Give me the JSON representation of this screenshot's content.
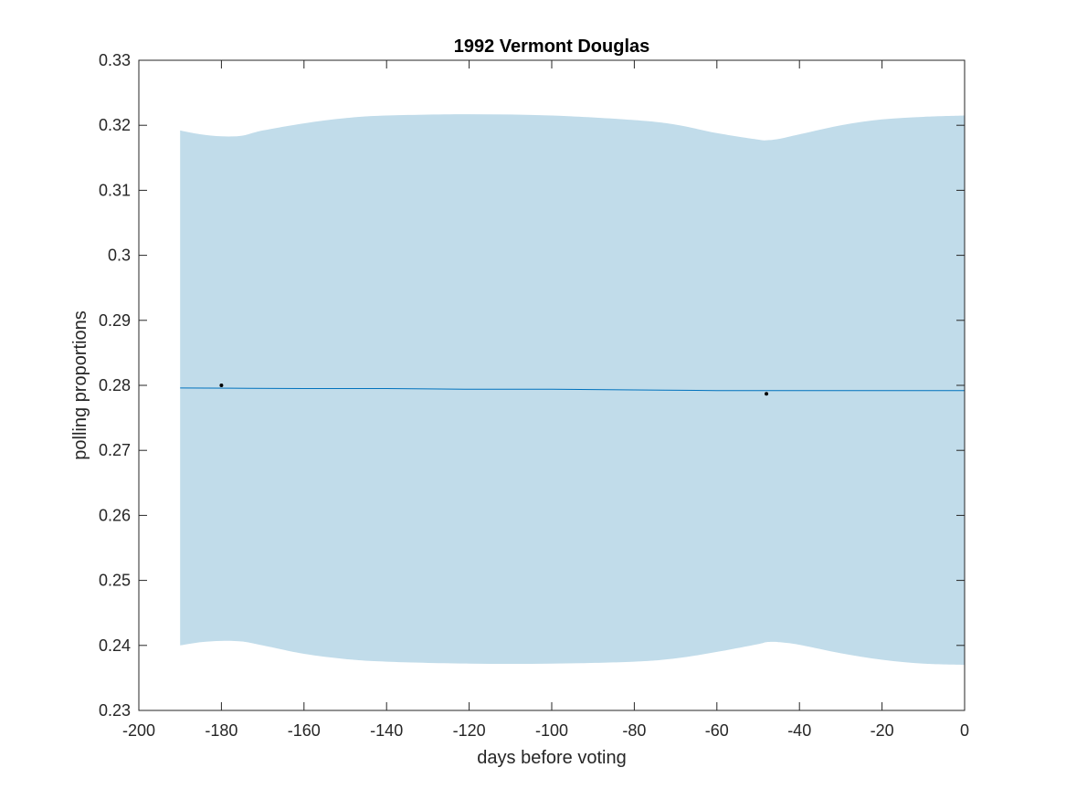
{
  "chart_data": {
    "type": "line",
    "title": "1992 Vermont Douglas",
    "xlabel": "days before voting",
    "ylabel": "polling proportions",
    "xlim": [
      -200,
      0
    ],
    "ylim": [
      0.23,
      0.33
    ],
    "xticks": [
      -200,
      -180,
      -160,
      -140,
      -120,
      -100,
      -80,
      -60,
      -40,
      -20,
      0
    ],
    "yticks": [
      0.23,
      0.24,
      0.25,
      0.26,
      0.27,
      0.28,
      0.29,
      0.3,
      0.31,
      0.32,
      0.33
    ],
    "xtick_labels": [
      "-200",
      "-180",
      "-160",
      "-140",
      "-120",
      "-100",
      "-80",
      "-60",
      "-40",
      "-20",
      "0"
    ],
    "ytick_labels": [
      "0.23",
      "0.24",
      "0.25",
      "0.26",
      "0.27",
      "0.28",
      "0.29",
      "0.3",
      "0.31",
      "0.32",
      "0.33"
    ],
    "grid": false,
    "band": {
      "x": [
        -190,
        -185,
        -180,
        -175,
        -170,
        -160,
        -150,
        -140,
        -120,
        -100,
        -80,
        -70,
        -60,
        -50,
        -48,
        -45,
        -40,
        -30,
        -20,
        -10,
        0
      ],
      "upper": [
        0.3192,
        0.3186,
        0.3183,
        0.3184,
        0.3192,
        0.3203,
        0.3211,
        0.3215,
        0.3217,
        0.3215,
        0.3208,
        0.3201,
        0.3188,
        0.3178,
        0.3177,
        0.3179,
        0.3186,
        0.32,
        0.3209,
        0.3213,
        0.3215
      ],
      "lower": [
        0.24,
        0.2405,
        0.2407,
        0.2406,
        0.24,
        0.2387,
        0.2379,
        0.2375,
        0.2372,
        0.2372,
        0.2375,
        0.238,
        0.239,
        0.2402,
        0.2405,
        0.2405,
        0.2401,
        0.2388,
        0.2378,
        0.2372,
        0.237
      ],
      "color": "#c1dcea"
    },
    "series": [
      {
        "x": [
          -190,
          -160,
          -140,
          -120,
          -100,
          -80,
          -60,
          -40,
          -20,
          0
        ],
        "values": [
          0.2796,
          0.2795,
          0.2795,
          0.2794,
          0.2794,
          0.2793,
          0.2792,
          0.2792,
          0.2792,
          0.2792
        ],
        "color": "#0072bd"
      }
    ],
    "points": {
      "x": [
        -180,
        -48
      ],
      "values": [
        0.28,
        0.2787
      ],
      "color": "#000000"
    }
  }
}
